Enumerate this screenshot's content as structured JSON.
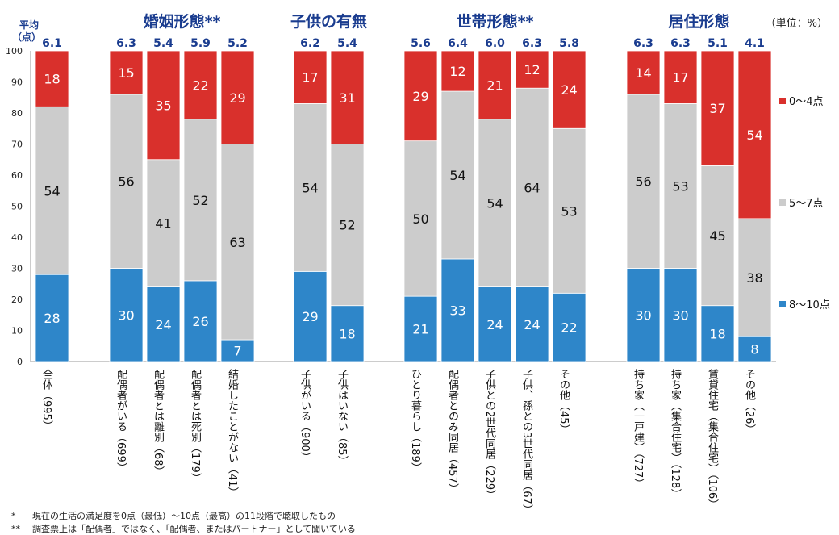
{
  "chart_data": {
    "type": "bar",
    "stacked": true,
    "ylim": [
      0,
      100
    ],
    "yticks": [
      0,
      10,
      20,
      30,
      40,
      50,
      60,
      70,
      80,
      90,
      100
    ],
    "avg_axis_label": [
      "平均",
      "（点）"
    ],
    "unit_label": "（単位：%）",
    "series": [
      {
        "name": "8〜10点",
        "color": "#2e86c9"
      },
      {
        "name": "5〜7点",
        "color": "#cccccc"
      },
      {
        "name": "0〜4点",
        "color": "#d9302c"
      }
    ],
    "groups": [
      {
        "title": "",
        "stars": "",
        "bars": [
          {
            "label": "全体",
            "n": "（995）",
            "avg": "6.1",
            "values": [
              28,
              54,
              18
            ]
          }
        ]
      },
      {
        "title": "婚姻形態",
        "stars": "**",
        "bars": [
          {
            "label": "配偶者がいる",
            "n": "（699）",
            "avg": "6.3",
            "values": [
              30,
              56,
              15
            ]
          },
          {
            "label": "配偶者とは離別",
            "n": "（68）",
            "avg": "5.4",
            "values": [
              24,
              41,
              35
            ]
          },
          {
            "label": "配偶者とは死別",
            "n": "（179）",
            "avg": "5.9",
            "values": [
              26,
              52,
              22
            ]
          },
          {
            "label": "結婚したことがない",
            "n": "（41）",
            "avg": "5.2",
            "values": [
              7,
              63,
              29
            ]
          }
        ]
      },
      {
        "title": "子供の有無",
        "stars": "",
        "bars": [
          {
            "label": "子供がいる",
            "n": "（900）",
            "avg": "6.2",
            "values": [
              29,
              54,
              17
            ]
          },
          {
            "label": "子供はいない",
            "n": "（85）",
            "avg": "5.4",
            "values": [
              18,
              52,
              31
            ]
          }
        ]
      },
      {
        "title": "世帯形態",
        "stars": "**",
        "bars": [
          {
            "label": "ひとり暮らし",
            "n": "（189）",
            "avg": "5.6",
            "values": [
              21,
              50,
              29
            ]
          },
          {
            "label": "配偶者とのみ同居",
            "n": "（457）",
            "avg": "6.4",
            "values": [
              33,
              54,
              12
            ]
          },
          {
            "label": "子供との2世代同居",
            "n": "（229）",
            "avg": "6.0",
            "values": [
              24,
              54,
              21
            ]
          },
          {
            "label": "子供、孫との3世代同居",
            "n": "（67）",
            "avg": "6.3",
            "values": [
              24,
              64,
              12
            ]
          },
          {
            "label": "その他",
            "n": "（45）",
            "avg": "5.8",
            "values": [
              22,
              53,
              24
            ]
          }
        ]
      },
      {
        "title": "居住形態",
        "stars": "",
        "bars": [
          {
            "label": "持ち家（一戸建）",
            "n": "（727）",
            "avg": "6.3",
            "values": [
              30,
              56,
              14
            ]
          },
          {
            "label": "持ち家（集合住宅）",
            "n": "（128）",
            "avg": "6.3",
            "values": [
              30,
              53,
              17
            ]
          },
          {
            "label": "賃貸住宅（集合住宅）",
            "n": "（106）",
            "avg": "5.1",
            "values": [
              18,
              45,
              37
            ]
          },
          {
            "label": "その他",
            "n": "（26）",
            "avg": "4.1",
            "values": [
              8,
              38,
              54
            ]
          }
        ]
      }
    ]
  },
  "notes": [
    {
      "mark": "*",
      "text": "現在の生活の満足度を0点（最低）〜10点（最高）の11段階で聴取したもの"
    },
    {
      "mark": "**",
      "text": "調査票上は「配偶者」ではなく、「配偶者、またはパートナー」として聞いている"
    }
  ]
}
